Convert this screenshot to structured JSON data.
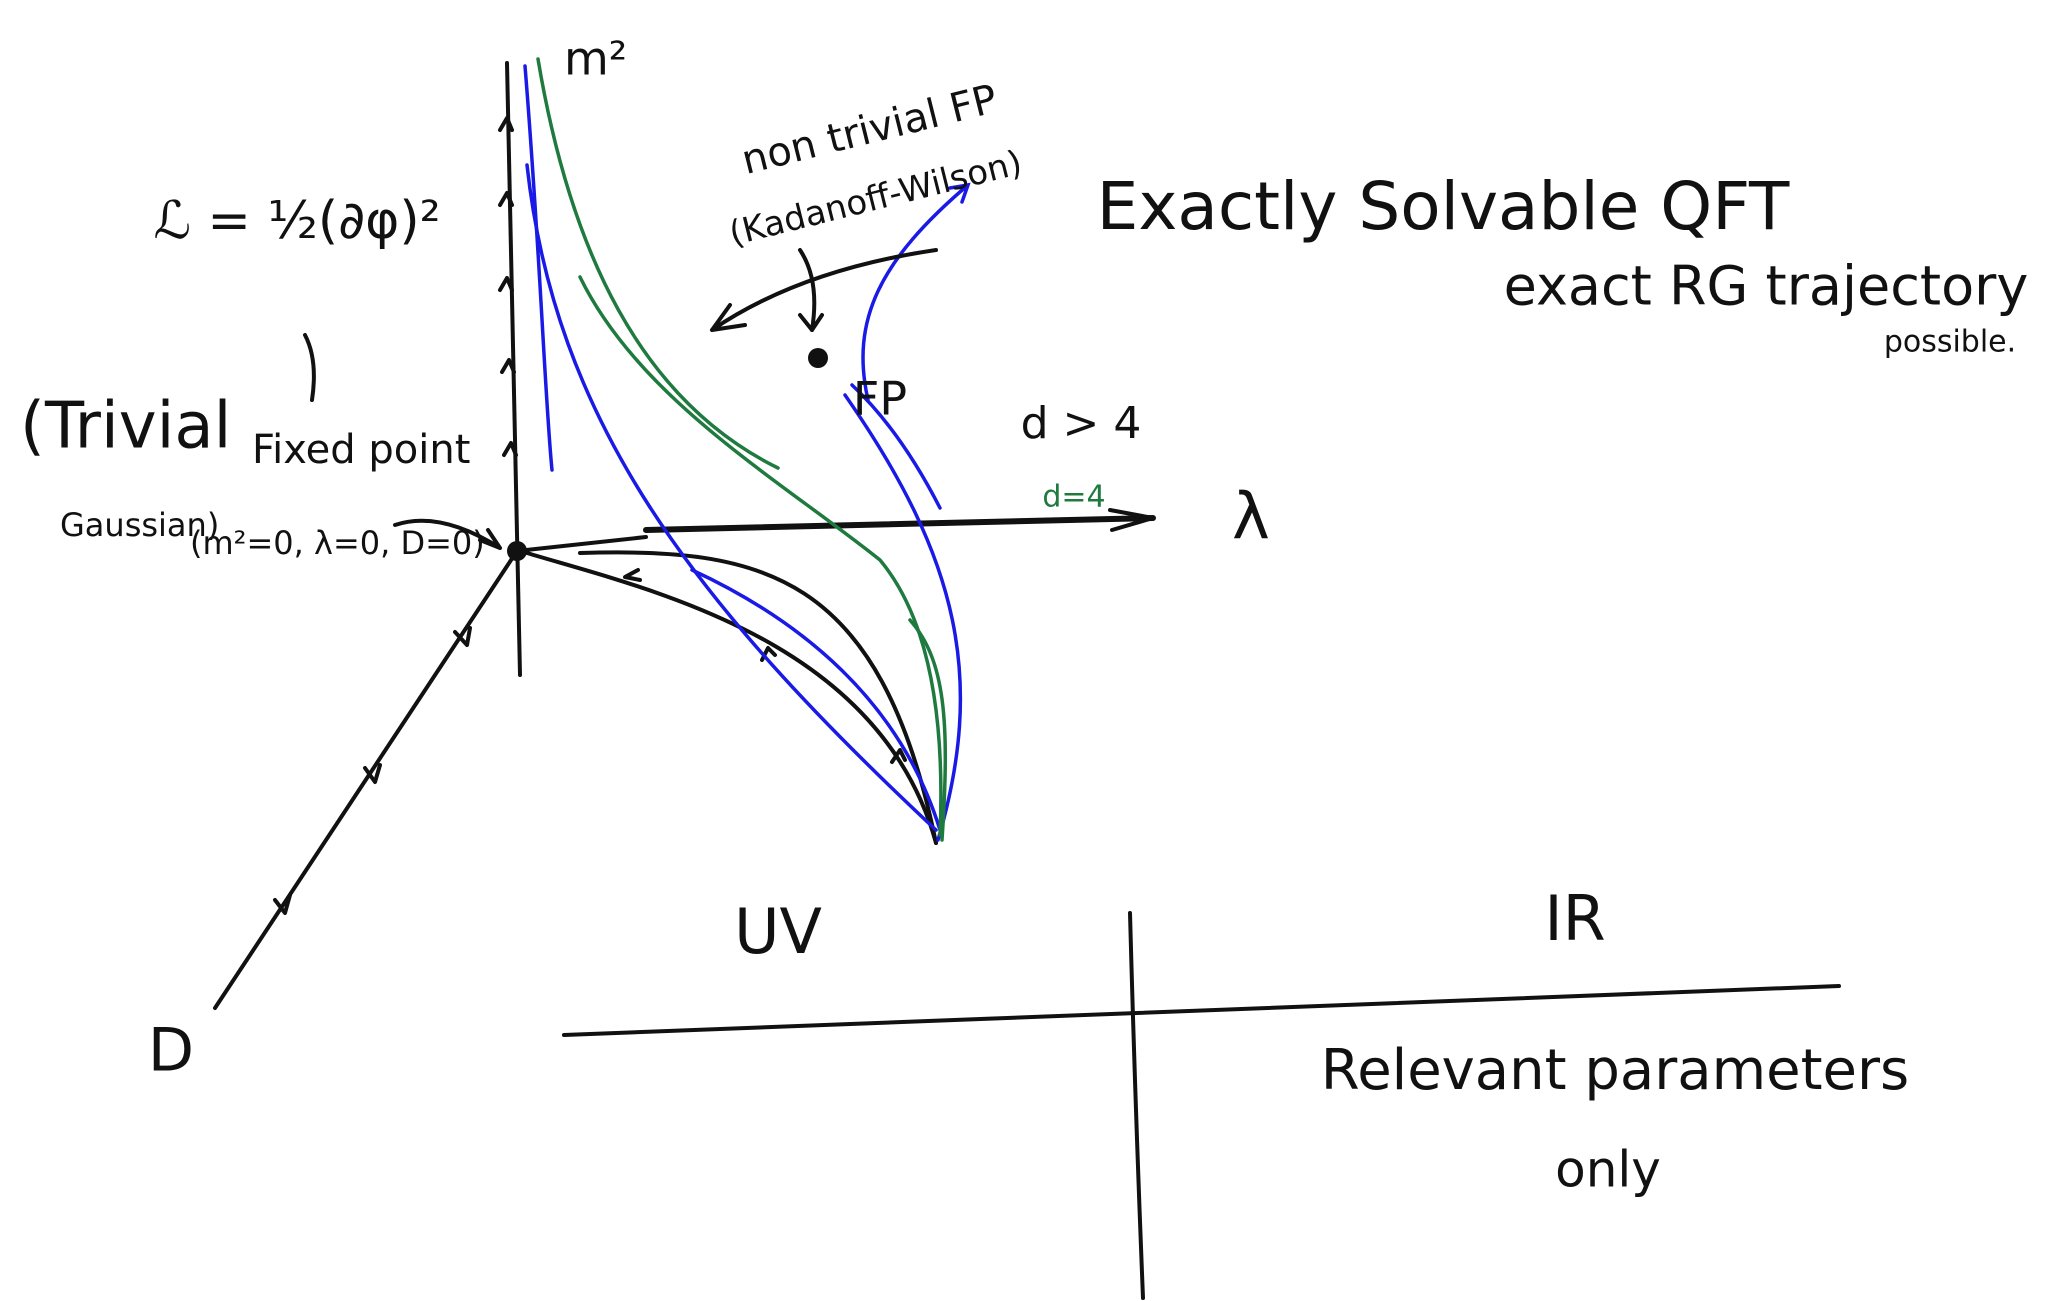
{
  "axes": {
    "m2": "m²",
    "lambda": "λ",
    "D": "D"
  },
  "lagrangian": "ℒ = ½(∂φ)²",
  "gaussian": {
    "line1": "(Trivial",
    "line2": "Gaussian)",
    "line3": "Fixed point",
    "line4": "(m²=0, λ=0, D=0)"
  },
  "nontrivial": {
    "line1": "non trivial FP",
    "line2": "(Kadanoff-Wilson)",
    "point": "FP"
  },
  "dims": {
    "above": "d > 4",
    "at": "d=4"
  },
  "heading": {
    "title": "Exactly Solvable QFT",
    "line2": "exact RG trajectory",
    "line3": "possible."
  },
  "table": {
    "left": "UV",
    "right": "IR",
    "row1": "Relevant parameters",
    "row2": "only"
  }
}
